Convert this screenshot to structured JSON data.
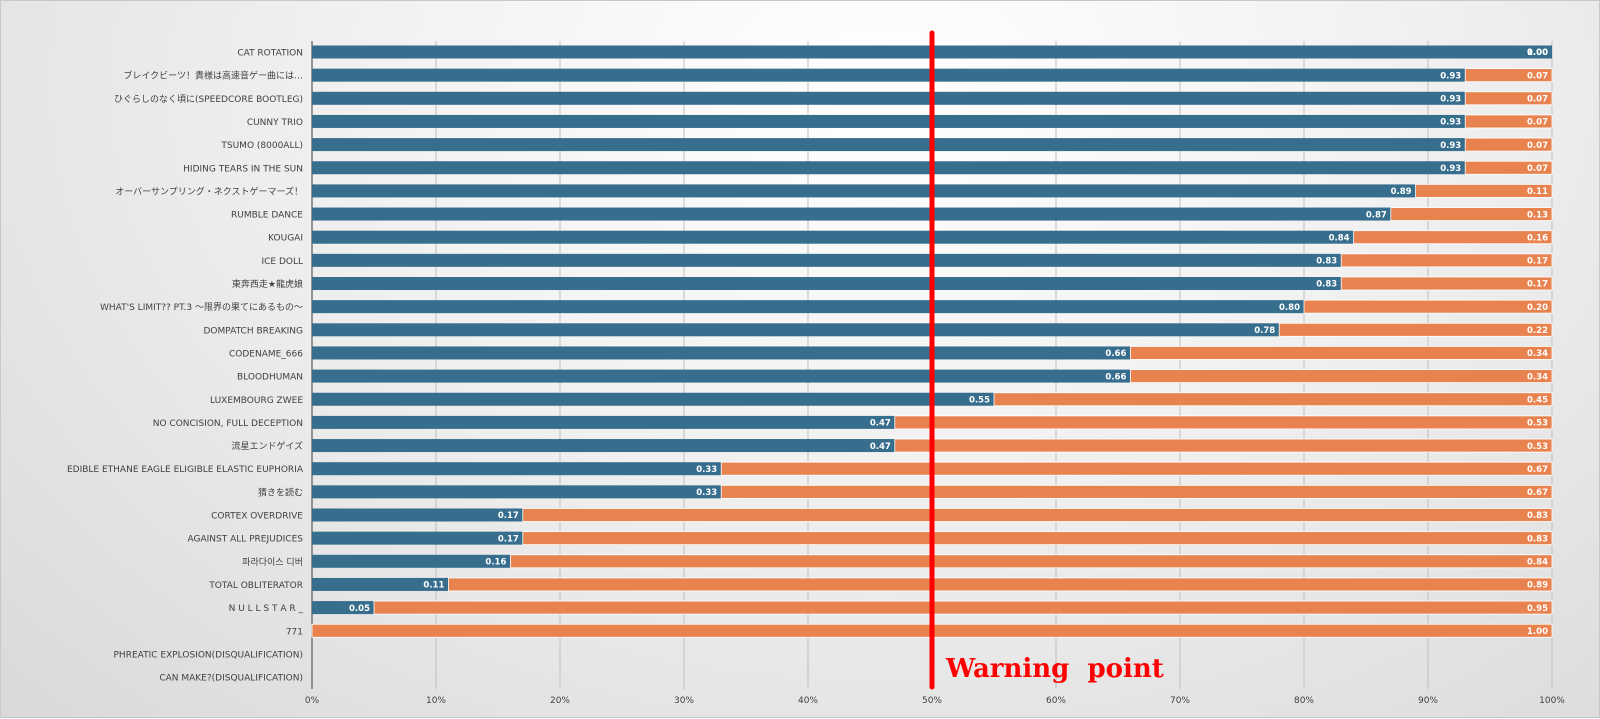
{
  "chart_data": {
    "type": "bar",
    "orientation": "horizontal",
    "stacked": true,
    "categories": [
      "CAT ROTATION",
      "ブレイクビーツ！貴様は高速音ゲー曲には…",
      "ひぐらしのなく頃に(SPEEDCORE BOOTLEG)",
      "CUNNY TRIO",
      "TSUMO (8000ALL)",
      "HIDING TEARS IN THE SUN",
      "オーバーサンプリング・ネクストゲーマーズ！",
      "RUMBLE DANCE",
      "KOUGAI",
      "ICE DOLL",
      "東奔西走★龍虎娘",
      "WHAT'S LIMIT?? PT.3 〜限界の果てにあるもの〜",
      "DOMPATCH BREAKING",
      "CODENAME_666",
      "BLOODHUMAN",
      "LUXEMBOURG ZWEE",
      "NO CONCISION, FULL DECEPTION",
      "流星エンドゲイズ",
      "EDIBLE ETHANE EAGLE ELIGIBLE ELASTIC EUPHORIA",
      "猜きを読む",
      "CORTEX OVERDRIVE",
      "AGAINST ALL PREJUDICES",
      "파라다이스 디버",
      "TOTAL OBLITERATOR",
      "N U L L S T A R _",
      "771",
      "PHREATIC EXPLOSION(DISQUALIFICATION)",
      "CAN MAKE?(DISQUALIFICATION)"
    ],
    "series": [
      {
        "color": "#376E8E",
        "values": [
          1.0,
          0.93,
          0.93,
          0.93,
          0.93,
          0.93,
          0.89,
          0.87,
          0.84,
          0.83,
          0.83,
          0.8,
          0.78,
          0.66,
          0.66,
          0.55,
          0.47,
          0.47,
          0.33,
          0.33,
          0.17,
          0.17,
          0.16,
          0.11,
          0.05,
          0.0,
          0.0,
          0.0
        ],
        "labels": [
          "1.00",
          "0.93",
          "0.93",
          "0.93",
          "0.93",
          "0.93",
          "0.89",
          "0.87",
          "0.84",
          "0.83",
          "0.83",
          "0.80",
          "0.78",
          "0.66",
          "0.66",
          "0.55",
          "0.47",
          "0.47",
          "0.33",
          "0.33",
          "0.17",
          "0.17",
          "0.16",
          "0.11",
          "0.05",
          "",
          "",
          ""
        ]
      },
      {
        "color": "#E8834F",
        "values": [
          0.0,
          0.07,
          0.07,
          0.07,
          0.07,
          0.07,
          0.11,
          0.13,
          0.16,
          0.17,
          0.17,
          0.2,
          0.22,
          0.34,
          0.34,
          0.45,
          0.53,
          0.53,
          0.67,
          0.67,
          0.83,
          0.83,
          0.84,
          0.89,
          0.95,
          1.0,
          0.0,
          0.0
        ],
        "labels": [
          "0.00",
          "0.07",
          "0.07",
          "0.07",
          "0.07",
          "0.07",
          "0.11",
          "0.13",
          "0.16",
          "0.17",
          "0.17",
          "0.20",
          "0.22",
          "0.34",
          "0.34",
          "0.45",
          "0.53",
          "0.53",
          "0.67",
          "0.67",
          "0.83",
          "0.83",
          "0.84",
          "0.89",
          "0.95",
          "1.00",
          "",
          ""
        ]
      }
    ],
    "xlim": [
      0,
      1
    ],
    "xticks": [
      "0%",
      "10%",
      "20%",
      "30%",
      "40%",
      "50%",
      "60%",
      "70%",
      "80%",
      "90%",
      "100%"
    ],
    "grid": true,
    "legend": "none",
    "reference_line": {
      "x": 0.5,
      "label": "Warning  point",
      "color": "#FF0000"
    }
  }
}
